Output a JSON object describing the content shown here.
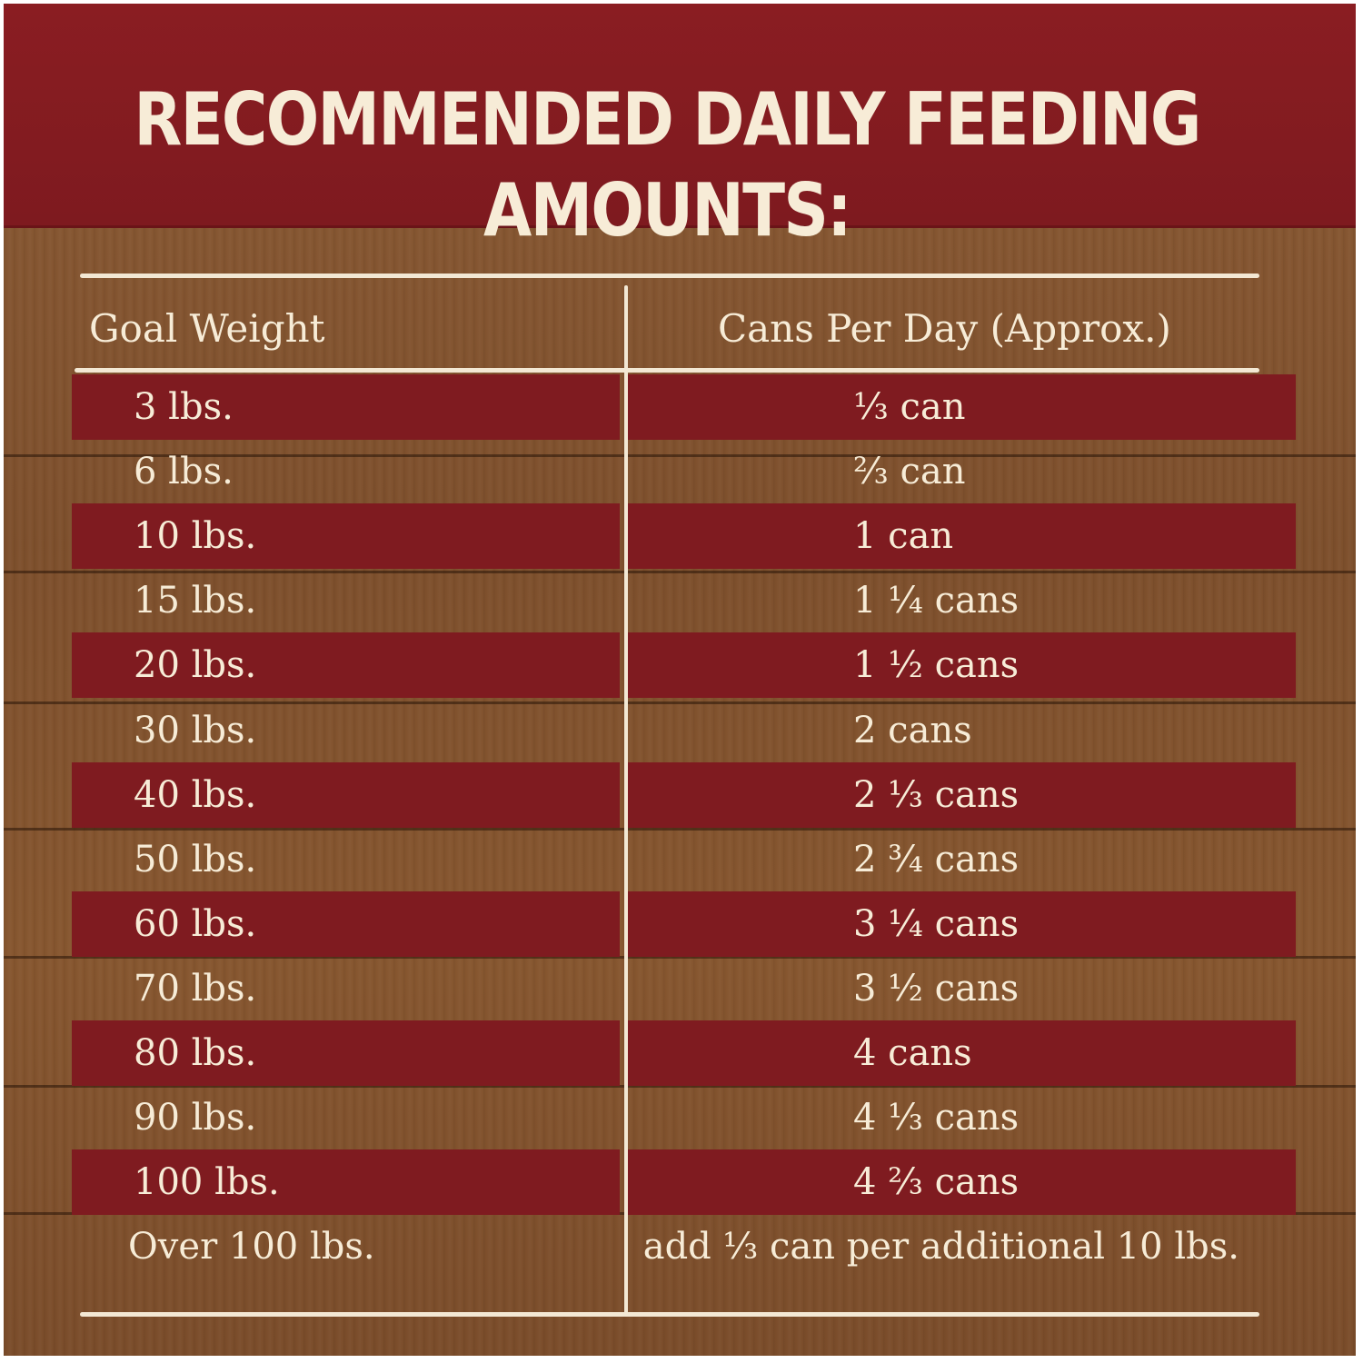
{
  "title": "RECOMMENDED DAILY FEEDING AMOUNTS:",
  "table": {
    "headers": {
      "weight": "Goal Weight",
      "cans": "Cans Per Day (Approx.)"
    },
    "rows": [
      {
        "weight": "3 lbs.",
        "cans": "⅓ can",
        "striped": true
      },
      {
        "weight": "6 lbs.",
        "cans": "⅔ can",
        "striped": false
      },
      {
        "weight": "10 lbs.",
        "cans": "1 can",
        "striped": true
      },
      {
        "weight": "15 lbs.",
        "cans": "1 ¼ cans",
        "striped": false
      },
      {
        "weight": "20 lbs.",
        "cans": "1 ½ cans",
        "striped": true
      },
      {
        "weight": "30 lbs.",
        "cans": "2 cans",
        "striped": false
      },
      {
        "weight": "40 lbs.",
        "cans": "2 ⅓ cans",
        "striped": true
      },
      {
        "weight": "50 lbs.",
        "cans": "2 ¾ cans",
        "striped": false
      },
      {
        "weight": "60 lbs.",
        "cans": "3 ¼ cans",
        "striped": true
      },
      {
        "weight": "70 lbs.",
        "cans": "3 ½ cans",
        "striped": false
      },
      {
        "weight": "80 lbs.",
        "cans": "4 cans",
        "striped": true
      },
      {
        "weight": "90 lbs.",
        "cans": "4 ⅓ cans",
        "striped": false
      },
      {
        "weight": "100 lbs.",
        "cans": "4 ⅔ cans",
        "striped": true
      },
      {
        "weight": "Over 100 lbs.",
        "cans": "add ⅓ can per additional 10 lbs.",
        "striped": false
      }
    ]
  },
  "colors": {
    "banner": "#8a1d22",
    "stripe": "#7f1b20",
    "wood": "#86562f",
    "text": "#f7ecd7"
  }
}
